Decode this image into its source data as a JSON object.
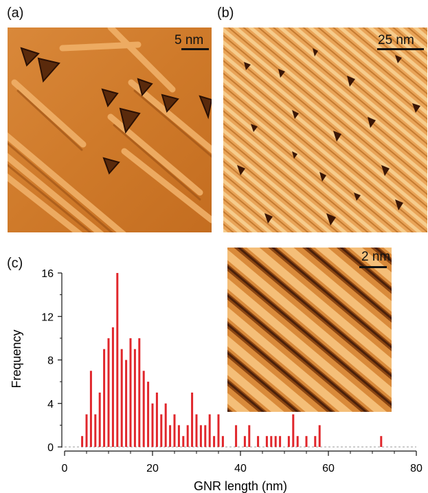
{
  "panels": {
    "a": {
      "label": "(a)",
      "scale_label": "5 nm"
    },
    "b": {
      "label": "(b)",
      "scale_label": "25 nm"
    },
    "c": {
      "label": "(c)",
      "inset_scale_label": "2 nm"
    }
  },
  "colors": {
    "bar": "#e0262b",
    "stm_dark": "#3a1a08",
    "stm_mid": "#c9731f",
    "stm_light": "#f5c27a"
  },
  "chart_data": {
    "type": "bar",
    "xlabel": "GNR length (nm)",
    "ylabel": "Frequency",
    "xlim": [
      0,
      80
    ],
    "ylim": [
      0,
      16
    ],
    "xticks": [
      "0",
      "20",
      "40",
      "60",
      "80"
    ],
    "yticks": [
      "0",
      "4",
      "8",
      "12",
      "16"
    ],
    "x": [
      4,
      5,
      6,
      7,
      8,
      9,
      10,
      11,
      12,
      13,
      14,
      15,
      16,
      17,
      18,
      19,
      20,
      21,
      22,
      23,
      24,
      25,
      26,
      27,
      28,
      29,
      30,
      31,
      32,
      33,
      34,
      35,
      36,
      39,
      41,
      42,
      44,
      46,
      47,
      48,
      49,
      51,
      52,
      53,
      55,
      57,
      58,
      72
    ],
    "values": [
      1,
      3,
      7,
      3,
      5,
      9,
      10,
      11,
      16,
      9,
      8,
      10,
      9,
      10,
      7,
      6,
      4,
      5,
      3,
      4,
      2,
      3,
      2,
      1,
      2,
      5,
      3,
      2,
      2,
      3,
      1,
      3,
      1,
      2,
      1,
      2,
      1,
      1,
      1,
      1,
      1,
      1,
      3,
      1,
      1,
      1,
      2,
      1
    ]
  }
}
